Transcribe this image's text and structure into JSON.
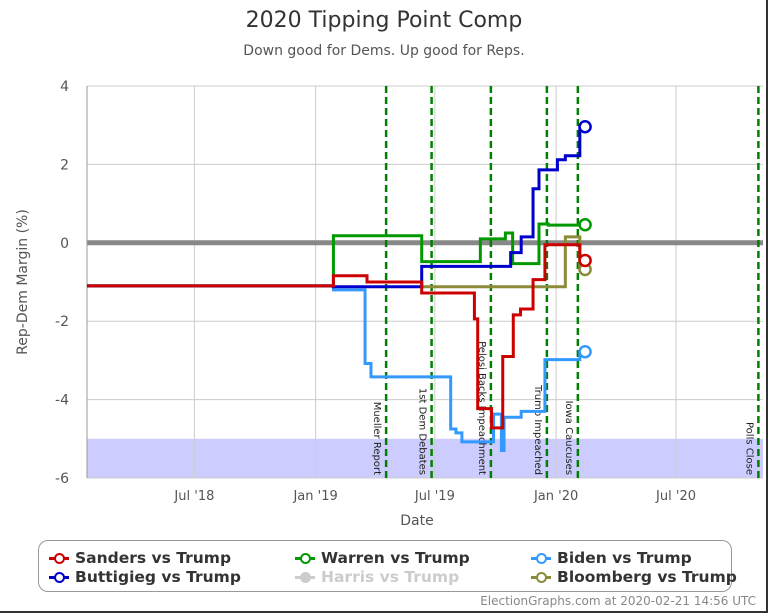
{
  "chart_data": {
    "type": "line",
    "title": "2020 Tipping Point Comp",
    "subtitle": "Down good for Dems. Up good for Reps.",
    "xlabel": "Date",
    "ylabel": "Rep-Dem Margin (%)",
    "xlim": [
      "2018-01-19",
      "2020-11-10"
    ],
    "ylim": [
      -6,
      4
    ],
    "yticks": [
      4,
      2,
      0,
      -2,
      -4,
      -6
    ],
    "xticks": [
      {
        "date": "2018-07-01",
        "label": "Jul '18"
      },
      {
        "date": "2019-01-01",
        "label": "Jan '19"
      },
      {
        "date": "2019-07-01",
        "label": "Jul '19"
      },
      {
        "date": "2020-01-01",
        "label": "Jan '20"
      },
      {
        "date": "2020-07-01",
        "label": "Jul '20"
      }
    ],
    "grid": true,
    "shaded_band": {
      "from": -6,
      "to": -5,
      "color": "#ccccff"
    },
    "zero_line_color": "#888888",
    "events": [
      {
        "date": "2019-04-18",
        "label": "Mueller Report"
      },
      {
        "date": "2019-06-26",
        "label": "1st Dem Debates"
      },
      {
        "date": "2019-09-24",
        "label": "Pelosi Backs Impeachment"
      },
      {
        "date": "2019-12-18",
        "label": "Trump Impeached"
      },
      {
        "date": "2020-02-03",
        "label": "Iowa Caucuses"
      },
      {
        "date": "2020-11-03",
        "label": "Polls Close"
      }
    ],
    "event_color": "#008000",
    "end_date": "2020-02-14",
    "legend_position": "bottom",
    "series": [
      {
        "name": "Biden vs Trump",
        "color": "#3399ff",
        "shown": true,
        "steps": [
          [
            "2018-01-19",
            -1.1
          ],
          [
            "2019-01-28",
            -1.2
          ],
          [
            "2019-03-17",
            -3.08
          ],
          [
            "2019-03-26",
            -3.42
          ],
          [
            "2019-07-25",
            -4.75
          ],
          [
            "2019-08-02",
            -4.85
          ],
          [
            "2019-08-11",
            -5.08
          ],
          [
            "2019-09-28",
            -4.37
          ],
          [
            "2019-10-10",
            -5.3
          ],
          [
            "2019-10-14",
            -4.45
          ],
          [
            "2019-11-09",
            -4.3
          ],
          [
            "2019-12-15",
            -2.98
          ],
          [
            "2020-02-06",
            -2.78
          ]
        ]
      },
      {
        "name": "Bloomberg vs Trump",
        "color": "#8b8b3a",
        "shown": true,
        "steps": [
          [
            "2019-06-11",
            -1.12
          ],
          [
            "2020-01-15",
            0.15
          ],
          [
            "2020-02-06",
            -0.68
          ]
        ]
      },
      {
        "name": "Warren vs Trump",
        "color": "#009900",
        "shown": true,
        "steps": [
          [
            "2018-01-19",
            -1.1
          ],
          [
            "2019-01-28",
            0.18
          ],
          [
            "2019-06-11",
            -0.48
          ],
          [
            "2019-09-08",
            0.1
          ],
          [
            "2019-10-16",
            0.25
          ],
          [
            "2019-10-27",
            -0.53
          ],
          [
            "2019-12-06",
            0.48
          ],
          [
            "2019-12-20",
            0.45
          ],
          [
            "2020-02-06",
            0.46
          ]
        ]
      },
      {
        "name": "Buttigieg vs Trump",
        "color": "#0000cc",
        "shown": true,
        "steps": [
          [
            "2018-01-19",
            -1.1
          ],
          [
            "2019-01-28",
            -1.12
          ],
          [
            "2019-06-11",
            -0.6
          ],
          [
            "2019-10-24",
            -0.25
          ],
          [
            "2019-11-09",
            0.15
          ],
          [
            "2019-11-27",
            1.38
          ],
          [
            "2019-12-06",
            1.86
          ],
          [
            "2020-01-03",
            2.12
          ],
          [
            "2020-01-15",
            2.22
          ],
          [
            "2020-02-06",
            2.96
          ]
        ]
      },
      {
        "name": "Sanders vs Trump",
        "color": "#cc0000",
        "shown": true,
        "steps": [
          [
            "2018-01-19",
            -1.1
          ],
          [
            "2019-01-28",
            -0.84
          ],
          [
            "2019-03-20",
            -1.0
          ],
          [
            "2019-06-11",
            -1.28
          ],
          [
            "2019-08-30",
            -1.94
          ],
          [
            "2019-09-04",
            -4.23
          ],
          [
            "2019-09-25",
            -4.72
          ],
          [
            "2019-10-12",
            -2.9
          ],
          [
            "2019-10-28",
            -1.84
          ],
          [
            "2019-11-08",
            -1.69
          ],
          [
            "2019-11-27",
            -0.94
          ],
          [
            "2019-12-15",
            -0.05
          ],
          [
            "2020-02-06",
            -0.45
          ]
        ]
      },
      {
        "name": "Harris vs Trump",
        "color": "#cccccc",
        "shown": false,
        "steps": []
      }
    ]
  },
  "legend": [
    {
      "label": "Sanders vs Trump",
      "color": "#cc0000"
    },
    {
      "label": "Warren vs Trump",
      "color": "#009900"
    },
    {
      "label": "Biden vs Trump",
      "color": "#3399ff"
    },
    {
      "label": "Buttigieg vs Trump",
      "color": "#0000cc"
    },
    {
      "label": "Harris vs Trump",
      "color": "#cccccc"
    },
    {
      "label": "Bloomberg vs Trump",
      "color": "#8b8b3a"
    }
  ],
  "footer": "ElectionGraphs.com at 2020-02-21 14:56 UTC"
}
